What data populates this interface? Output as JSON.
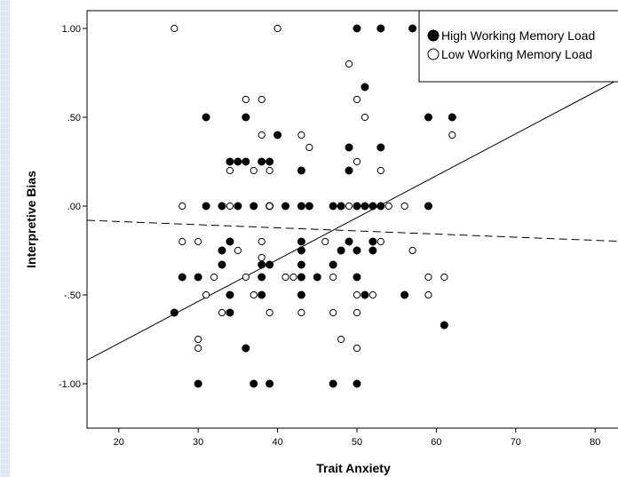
{
  "chart_data": {
    "type": "scatter",
    "xlabel": "Trait Anxiety",
    "ylabel": "Interpretive Bias",
    "xlim": [
      16,
      84
    ],
    "ylim": [
      -1.25,
      1.1
    ],
    "x_ticks": [
      20,
      30,
      40,
      50,
      60,
      70,
      80
    ],
    "x_tick_labels": [
      "20",
      "30",
      "40",
      "50",
      "60",
      "70",
      "80"
    ],
    "y_ticks": [
      1.0,
      0.5,
      0.0,
      -0.5,
      -1.0
    ],
    "y_tick_labels": [
      "1.00",
      ".50",
      ".00",
      "-.50",
      "-1.00"
    ],
    "grid": false,
    "legend_position": "top-right",
    "series": [
      {
        "name": "High Working Memory Load",
        "marker": "filled-circle",
        "color": "#000000",
        "points": [
          [
            50,
            1.0
          ],
          [
            53,
            1.0
          ],
          [
            57,
            1.0
          ],
          [
            51,
            0.67
          ],
          [
            31,
            0.5
          ],
          [
            36,
            0.5
          ],
          [
            59,
            0.5
          ],
          [
            62,
            0.5
          ],
          [
            40,
            0.4
          ],
          [
            49,
            0.33
          ],
          [
            53,
            0.33
          ],
          [
            34,
            0.25
          ],
          [
            35,
            0.25
          ],
          [
            36,
            0.25
          ],
          [
            38,
            0.25
          ],
          [
            39,
            0.25
          ],
          [
            43,
            0.2
          ],
          [
            49,
            0.2
          ],
          [
            31,
            0.0
          ],
          [
            33,
            0.0
          ],
          [
            35,
            0.0
          ],
          [
            37,
            0.0
          ],
          [
            39,
            0.0
          ],
          [
            41,
            0.0
          ],
          [
            43,
            0.0
          ],
          [
            44,
            0.0
          ],
          [
            47,
            0.0
          ],
          [
            48,
            0.0
          ],
          [
            50,
            0.0
          ],
          [
            51,
            0.0
          ],
          [
            52,
            0.0
          ],
          [
            53,
            0.0
          ],
          [
            59,
            0.0
          ],
          [
            34,
            -0.2
          ],
          [
            43,
            -0.2
          ],
          [
            49,
            -0.2
          ],
          [
            52,
            -0.2
          ],
          [
            33,
            -0.25
          ],
          [
            43,
            -0.25
          ],
          [
            48,
            -0.25
          ],
          [
            50,
            -0.25
          ],
          [
            52,
            -0.25
          ],
          [
            33,
            -0.33
          ],
          [
            38,
            -0.33
          ],
          [
            39,
            -0.33
          ],
          [
            43,
            -0.33
          ],
          [
            47,
            -0.33
          ],
          [
            28,
            -0.4
          ],
          [
            30,
            -0.4
          ],
          [
            38,
            -0.4
          ],
          [
            43,
            -0.4
          ],
          [
            45,
            -0.4
          ],
          [
            50,
            -0.4
          ],
          [
            34,
            -0.5
          ],
          [
            38,
            -0.5
          ],
          [
            43,
            -0.5
          ],
          [
            51,
            -0.5
          ],
          [
            56,
            -0.5
          ],
          [
            27,
            -0.6
          ],
          [
            34,
            -0.6
          ],
          [
            61,
            -0.67
          ],
          [
            36,
            -0.8
          ],
          [
            30,
            -1.0
          ],
          [
            37,
            -1.0
          ],
          [
            39,
            -1.0
          ],
          [
            47,
            -1.0
          ],
          [
            50,
            -1.0
          ]
        ]
      },
      {
        "name": "Low Working Memory Load",
        "marker": "open-circle",
        "color": "#000000",
        "points": [
          [
            27,
            1.0
          ],
          [
            40,
            1.0
          ],
          [
            49,
            0.8
          ],
          [
            36,
            0.6
          ],
          [
            38,
            0.6
          ],
          [
            50,
            0.6
          ],
          [
            51,
            0.5
          ],
          [
            38,
            0.4
          ],
          [
            43,
            0.4
          ],
          [
            62,
            0.4
          ],
          [
            44,
            0.33
          ],
          [
            50,
            0.25
          ],
          [
            34,
            0.2
          ],
          [
            37,
            0.2
          ],
          [
            39,
            0.2
          ],
          [
            53,
            0.2
          ],
          [
            28,
            0.0
          ],
          [
            34,
            0.0
          ],
          [
            39,
            0.0
          ],
          [
            49,
            0.0
          ],
          [
            54,
            0.0
          ],
          [
            56,
            0.0
          ],
          [
            28,
            -0.2
          ],
          [
            30,
            -0.2
          ],
          [
            38,
            -0.2
          ],
          [
            46,
            -0.2
          ],
          [
            53,
            -0.2
          ],
          [
            35,
            -0.25
          ],
          [
            57,
            -0.25
          ],
          [
            38,
            -0.29
          ],
          [
            32,
            -0.4
          ],
          [
            36,
            -0.4
          ],
          [
            41,
            -0.4
          ],
          [
            42,
            -0.4
          ],
          [
            47,
            -0.4
          ],
          [
            59,
            -0.4
          ],
          [
            61,
            -0.4
          ],
          [
            31,
            -0.5
          ],
          [
            37,
            -0.5
          ],
          [
            50,
            -0.5
          ],
          [
            52,
            -0.5
          ],
          [
            59,
            -0.5
          ],
          [
            33,
            -0.6
          ],
          [
            39,
            -0.6
          ],
          [
            43,
            -0.6
          ],
          [
            47,
            -0.6
          ],
          [
            50,
            -0.6
          ],
          [
            30,
            -0.75
          ],
          [
            48,
            -0.75
          ],
          [
            30,
            -0.8
          ],
          [
            50,
            -0.8
          ]
        ]
      }
    ],
    "fit_lines": [
      {
        "series": "High Working Memory Load",
        "style": "solid",
        "intercept": -1.245,
        "slope": 0.0236
      },
      {
        "series": "Low Working Memory Load",
        "style": "dashed",
        "intercept": -0.0519,
        "slope": -0.00176
      }
    ]
  }
}
